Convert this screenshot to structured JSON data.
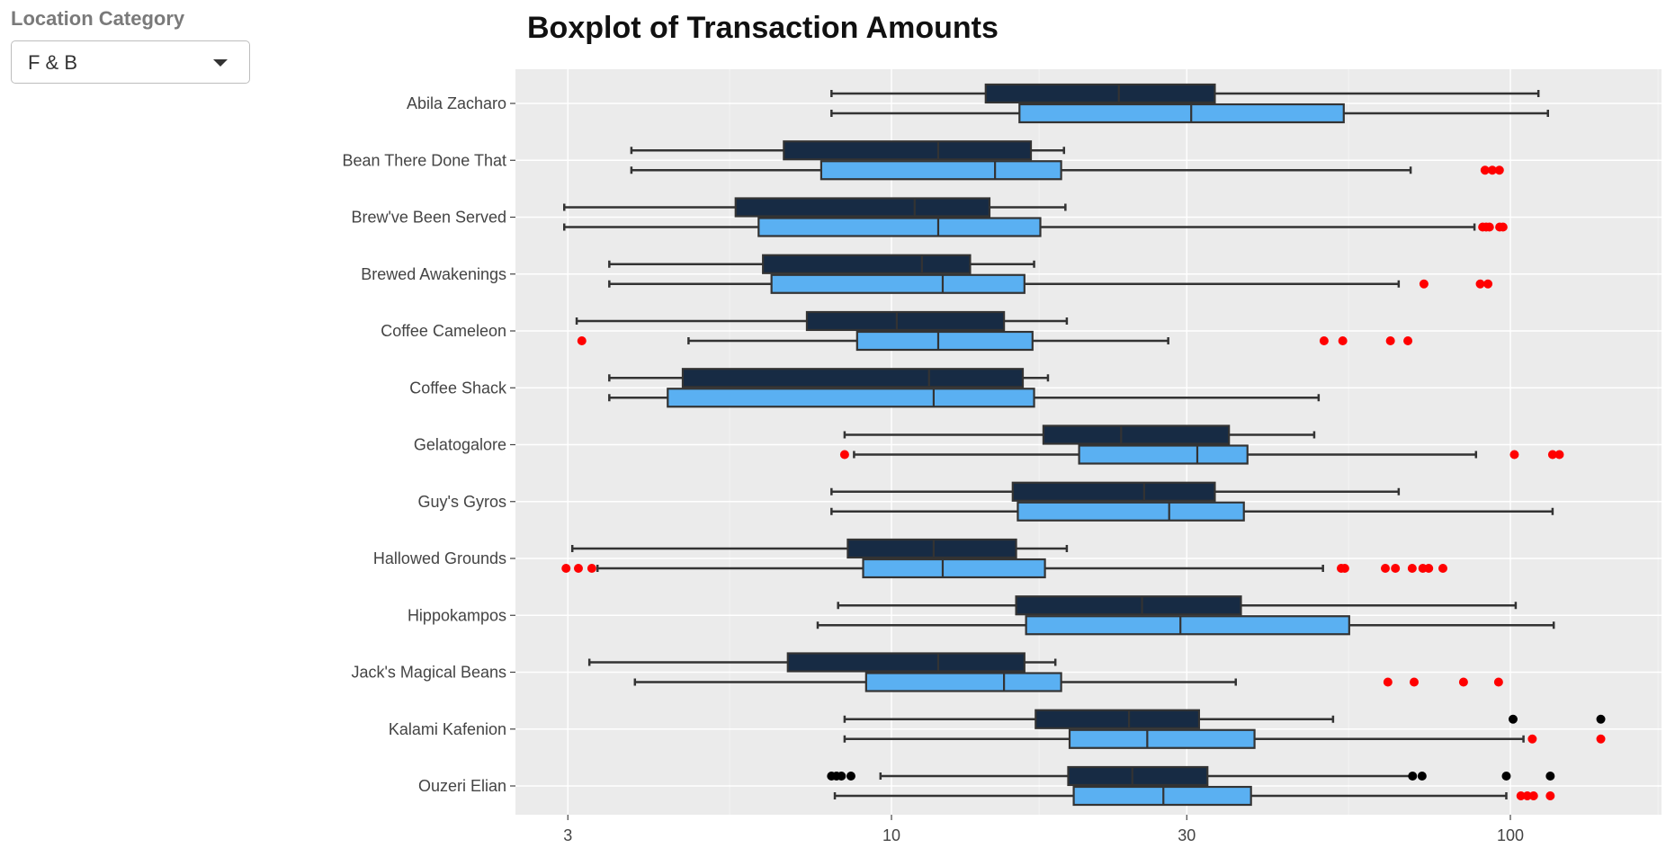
{
  "filter": {
    "label": "Location Category",
    "selected": "F & B"
  },
  "chart_data": {
    "type": "boxplot",
    "title": "Boxplot of Transaction Amounts",
    "xscale": "log10",
    "xlim": [
      2.6,
      150
    ],
    "xticks": [
      3,
      10,
      30,
      100
    ],
    "xlabel": "",
    "ylabel": "",
    "legend": "none",
    "series": [
      {
        "name": "series_dark",
        "color": "#172b44"
      },
      {
        "name": "series_light",
        "color": "#5ab0f2"
      }
    ],
    "categories": [
      {
        "name": "Abila Zacharo",
        "dark": {
          "min": 8,
          "q1": 14.2,
          "median": 23.3,
          "q3": 33.3,
          "max": 111,
          "outliers": []
        },
        "light": {
          "min": 8,
          "q1": 16.1,
          "median": 30.5,
          "q3": 53.8,
          "max": 115,
          "outliers": []
        }
      },
      {
        "name": "Bean There Done That",
        "dark": {
          "min": 3.8,
          "q1": 6.7,
          "median": 11.9,
          "q3": 16.8,
          "max": 19,
          "outliers": []
        },
        "light": {
          "min": 3.8,
          "q1": 7.7,
          "median": 14.7,
          "q3": 18.8,
          "max": 69,
          "outliers": [
            91,
            93.5,
            96
          ]
        }
      },
      {
        "name": "Brew've Been Served",
        "dark": {
          "min": 2.96,
          "q1": 5.6,
          "median": 10.9,
          "q3": 14.4,
          "max": 19.1,
          "outliers": []
        },
        "light": {
          "min": 2.96,
          "q1": 6.1,
          "median": 11.9,
          "q3": 17.4,
          "max": 87.5,
          "outliers": [
            90.2,
            91.4,
            92.5,
            96.1,
            97.3
          ]
        }
      },
      {
        "name": "Brewed Awakenings",
        "dark": {
          "min": 3.5,
          "q1": 6.2,
          "median": 11.2,
          "q3": 13.4,
          "max": 17,
          "outliers": []
        },
        "light": {
          "min": 3.5,
          "q1": 6.4,
          "median": 12.1,
          "q3": 16.4,
          "max": 66,
          "outliers": [
            72.5,
            89.4,
            92
          ]
        }
      },
      {
        "name": "Coffee Cameleon",
        "dark": {
          "min": 3.1,
          "q1": 7.3,
          "median": 10.2,
          "q3": 15.2,
          "max": 19.2,
          "outliers": []
        },
        "light": {
          "min": 4.7,
          "q1": 8.8,
          "median": 11.9,
          "q3": 16.9,
          "max": 28,
          "outliers": [
            3.16,
            50,
            53.6,
            64,
            68.3
          ]
        }
      },
      {
        "name": "Coffee Shack",
        "dark": {
          "min": 3.5,
          "q1": 4.6,
          "median": 11.5,
          "q3": 16.3,
          "max": 17.9,
          "outliers": []
        },
        "light": {
          "min": 3.5,
          "q1": 4.35,
          "median": 11.7,
          "q3": 17,
          "max": 49,
          "outliers": []
        }
      },
      {
        "name": "Gelatogalore",
        "dark": {
          "min": 8.4,
          "q1": 17.6,
          "median": 23.5,
          "q3": 35.1,
          "max": 48.2,
          "outliers": []
        },
        "light": {
          "min": 8.7,
          "q1": 20.1,
          "median": 31.2,
          "q3": 37.6,
          "max": 88,
          "outliers": [
            8.4,
            101.5,
            117,
            120
          ]
        }
      },
      {
        "name": "Guy's Gyros",
        "dark": {
          "min": 8,
          "q1": 15.7,
          "median": 25.6,
          "q3": 33.3,
          "max": 66,
          "outliers": []
        },
        "light": {
          "min": 8,
          "q1": 16,
          "median": 28.1,
          "q3": 37.1,
          "max": 117,
          "outliers": []
        }
      },
      {
        "name": "Hallowed Grounds",
        "dark": {
          "min": 3.05,
          "q1": 8.5,
          "median": 11.7,
          "q3": 15.9,
          "max": 19.2,
          "outliers": []
        },
        "light": {
          "min": 3.35,
          "q1": 9,
          "median": 12.1,
          "q3": 17.7,
          "max": 49.8,
          "outliers": [
            2.98,
            3.12,
            3.28,
            53.3,
            54,
            62.8,
            65.2,
            69.4,
            72.2,
            73.8,
            77.8
          ]
        }
      },
      {
        "name": "Hippokampos",
        "dark": {
          "min": 8.2,
          "q1": 15.9,
          "median": 25.4,
          "q3": 36.7,
          "max": 102,
          "outliers": []
        },
        "light": {
          "min": 7.6,
          "q1": 16.5,
          "median": 29.3,
          "q3": 54.9,
          "max": 117.5,
          "outliers": []
        }
      },
      {
        "name": "Jack's Magical Beans",
        "dark": {
          "min": 3.25,
          "q1": 6.8,
          "median": 11.9,
          "q3": 16.4,
          "max": 18.4,
          "outliers": []
        },
        "light": {
          "min": 3.85,
          "q1": 9.1,
          "median": 15.2,
          "q3": 18.8,
          "max": 36,
          "outliers": [
            63.4,
            69.9,
            84,
            95.7
          ]
        }
      },
      {
        "name": "Kalami Kafenion",
        "dark": {
          "min": 8.4,
          "q1": 17.1,
          "median": 24.2,
          "q3": 31.4,
          "max": 51.7,
          "outliers": [
            101,
            140
          ]
        },
        "light": {
          "min": 8.4,
          "q1": 19.4,
          "median": 25.9,
          "q3": 38.6,
          "max": 105,
          "outliers": [
            108.5,
            140
          ]
        }
      },
      {
        "name": "Ouzeri Elian",
        "dark": {
          "min": 9.6,
          "q1": 19.3,
          "median": 24.5,
          "q3": 32.4,
          "max": 69,
          "outliers": [
            8,
            8.15,
            8.3,
            8.6,
            69.5,
            72,
            98.5,
            116
          ]
        },
        "light": {
          "min": 8.1,
          "q1": 19.7,
          "median": 27.5,
          "q3": 38.1,
          "max": 98.5,
          "outliers": [
            104,
            106.5,
            109,
            116
          ]
        }
      }
    ]
  }
}
